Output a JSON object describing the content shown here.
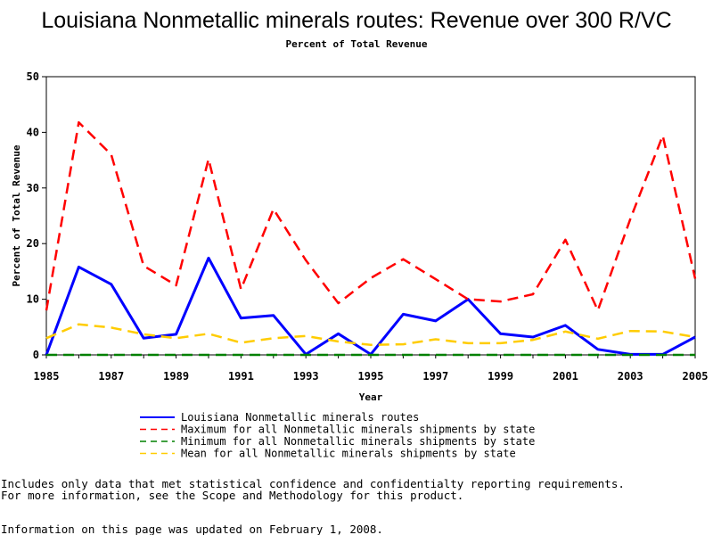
{
  "chart_data": {
    "type": "line",
    "title": "Louisiana Nonmetallic minerals routes: Revenue over 300 R/VC",
    "subtitle": "Percent of Total Revenue",
    "xlabel": "Year",
    "ylabel": "Percent of Total Revenue",
    "xlim": [
      1985,
      2005
    ],
    "ylim": [
      0,
      50
    ],
    "x_ticks": [
      1985,
      1987,
      1989,
      1991,
      1993,
      1995,
      1997,
      1999,
      2001,
      2003,
      2005
    ],
    "y_ticks": [
      0,
      10,
      20,
      30,
      40,
      50
    ],
    "x": [
      1985,
      1986,
      1987,
      1988,
      1989,
      1990,
      1991,
      1992,
      1993,
      1994,
      1995,
      1996,
      1997,
      1998,
      1999,
      2000,
      2001,
      2002,
      2003,
      2004,
      2005
    ],
    "series": [
      {
        "name": "Louisiana Nonmetallic minerals routes",
        "color": "#0000ff",
        "dash": "solid",
        "values": [
          0,
          15.8,
          12.7,
          3.0,
          3.7,
          17.4,
          6.6,
          7.1,
          0.1,
          3.8,
          0.1,
          7.3,
          6.1,
          10.0,
          3.8,
          3.2,
          5.3,
          1.0,
          0.1,
          0.1,
          3.2
        ]
      },
      {
        "name": "Maximum for all Nonmetallic minerals shipments by state",
        "color": "#ff0000",
        "dash": "dashed",
        "values": [
          8.0,
          41.8,
          36.0,
          16.0,
          12.5,
          35.2,
          11.8,
          26.2,
          17.0,
          9.3,
          13.8,
          17.2,
          13.6,
          10.0,
          9.6,
          10.9,
          20.7,
          8.0,
          24.4,
          39.4,
          13.7
        ]
      },
      {
        "name": "Minimum for all Nonmetallic minerals shipments by state",
        "color": "#008000",
        "dash": "dashed",
        "values": [
          0,
          0,
          0,
          0,
          0,
          0,
          0,
          0,
          0,
          0,
          0,
          0,
          0,
          0,
          0,
          0,
          0,
          0,
          0,
          0,
          0
        ]
      },
      {
        "name": "Mean for all Nonmetallic minerals shipments by state",
        "color": "#ffcc00",
        "dash": "dashed",
        "values": [
          3.0,
          5.5,
          4.9,
          3.7,
          3.0,
          3.8,
          2.2,
          3.0,
          3.4,
          2.4,
          1.8,
          1.9,
          2.8,
          2.1,
          2.1,
          2.7,
          4.2,
          2.9,
          4.3,
          4.2,
          3.2
        ]
      }
    ]
  },
  "footnotes": {
    "line1": "Includes only data that met statistical confidence and confidentialty reporting requirements.",
    "line2": "For more information, see the Scope and Methodology for this product.",
    "line3": "Information on this page was updated on February 1, 2008."
  }
}
